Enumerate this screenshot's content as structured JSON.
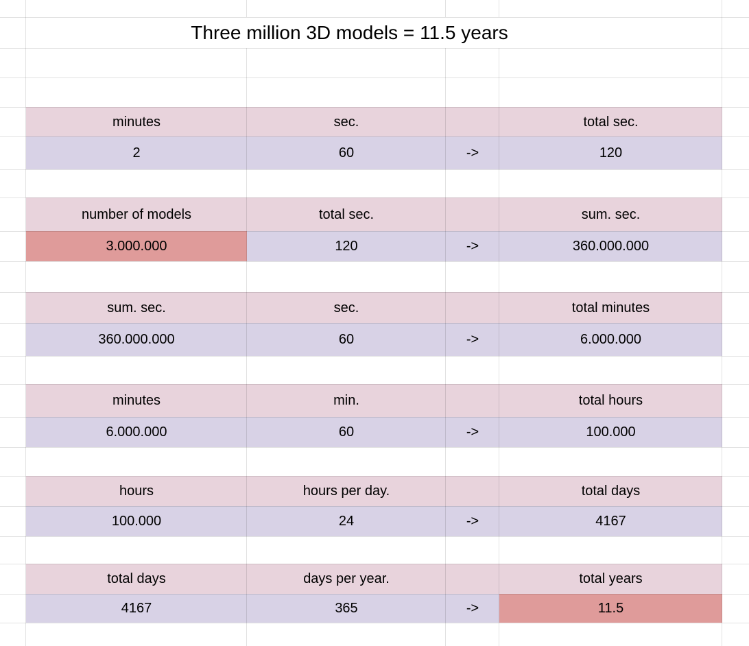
{
  "sheet": {
    "title": "Three million 3D models = 11.5 years",
    "colors": {
      "header_fill": "#e8d3dc",
      "value_fill": "#d8d2e6",
      "highlight_fill": "#df9b9a",
      "gridline": "#e2e2e2",
      "text": "#000000",
      "background": "#ffffff"
    },
    "blocks": [
      {
        "headers": {
          "input1": "minutes",
          "input2": "sec.",
          "result": "total sec."
        },
        "values": {
          "input1": "2",
          "input2": "60",
          "arrow": "->",
          "result": "120"
        }
      },
      {
        "headers": {
          "input1": "number of models",
          "input2": "total sec.",
          "result": "sum. sec."
        },
        "values": {
          "input1": "3.000.000",
          "input2": "120",
          "arrow": "->",
          "result": "360.000.000"
        },
        "highlight": "input1"
      },
      {
        "headers": {
          "input1": "sum. sec.",
          "input2": "sec.",
          "result": "total minutes"
        },
        "values": {
          "input1": "360.000.000",
          "input2": "60",
          "arrow": "->",
          "result": "6.000.000"
        }
      },
      {
        "headers": {
          "input1": "minutes",
          "input2": "min.",
          "result": "total hours"
        },
        "values": {
          "input1": "6.000.000",
          "input2": "60",
          "arrow": "->",
          "result": "100.000"
        }
      },
      {
        "headers": {
          "input1": "hours",
          "input2": "hours per day.",
          "result": "total days"
        },
        "values": {
          "input1": "100.000",
          "input2": "24",
          "arrow": "->",
          "result": "4167"
        }
      },
      {
        "headers": {
          "input1": "total days",
          "input2": "days per year.",
          "result": "total years"
        },
        "values": {
          "input1": "4167",
          "input2": "365",
          "arrow": "->",
          "result": "11.5"
        },
        "highlight": "result"
      }
    ]
  }
}
